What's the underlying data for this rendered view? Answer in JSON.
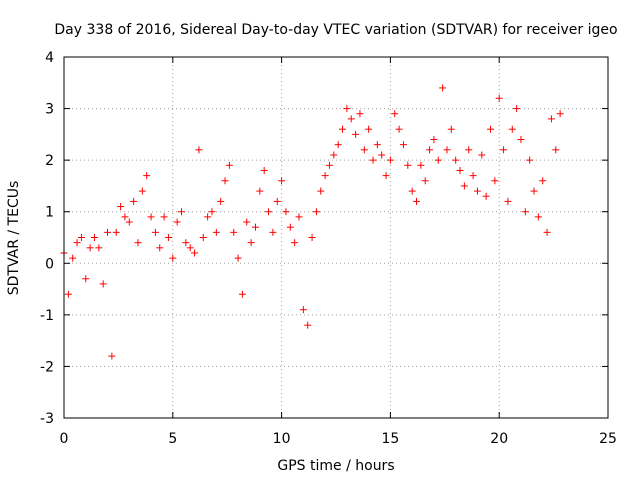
{
  "chart_data": {
    "type": "scatter",
    "title": "Day 338 of 2016, Sidereal Day-to-day VTEC variation (SDTVAR) for receiver igeo",
    "xlabel": "GPS time / hours",
    "ylabel": "SDTVAR / TECUs",
    "xlim": [
      0,
      25
    ],
    "ylim": [
      -3,
      4
    ],
    "xticks": [
      "0",
      "5",
      "10",
      "15",
      "20",
      "25"
    ],
    "yticks": [
      "-3",
      "-2",
      "-1",
      "0",
      "1",
      "2",
      "3",
      "4"
    ],
    "grid": true,
    "marker": "+",
    "color": "#ff0000",
    "series": [
      {
        "name": "SDTVAR",
        "x": [
          0.0,
          0.2,
          0.4,
          0.6,
          0.8,
          1.0,
          1.2,
          1.4,
          1.6,
          1.8,
          2.0,
          2.2,
          2.4,
          2.6,
          2.8,
          3.0,
          3.2,
          3.4,
          3.6,
          3.8,
          4.0,
          4.2,
          4.4,
          4.6,
          4.8,
          5.0,
          5.2,
          5.4,
          5.6,
          5.8,
          6.0,
          6.2,
          6.4,
          6.6,
          6.8,
          7.0,
          7.2,
          7.4,
          7.6,
          7.8,
          8.0,
          8.2,
          8.4,
          8.6,
          8.8,
          9.0,
          9.2,
          9.4,
          9.6,
          9.8,
          10.0,
          10.2,
          10.4,
          10.6,
          10.8,
          11.0,
          11.2,
          11.4,
          11.6,
          11.8,
          12.0,
          12.2,
          12.4,
          12.6,
          12.8,
          13.0,
          13.2,
          13.4,
          13.6,
          13.8,
          14.0,
          14.2,
          14.4,
          14.6,
          14.8,
          15.0,
          15.2,
          15.4,
          15.6,
          15.8,
          16.0,
          16.2,
          16.4,
          16.6,
          16.8,
          17.0,
          17.2,
          17.4,
          17.6,
          17.8,
          18.0,
          18.2,
          18.4,
          18.6,
          18.8,
          19.0,
          19.2,
          19.4,
          19.6,
          19.8,
          20.0,
          20.2,
          20.4,
          20.6,
          20.8,
          21.0,
          21.2,
          21.4,
          21.6,
          21.8,
          22.0,
          22.2,
          22.4,
          22.6,
          22.8
        ],
        "y": [
          0.2,
          -0.6,
          0.1,
          0.4,
          0.5,
          -0.3,
          0.3,
          0.5,
          0.3,
          -0.4,
          0.6,
          -1.8,
          0.6,
          1.1,
          0.9,
          0.8,
          1.2,
          0.4,
          1.4,
          1.7,
          0.9,
          0.6,
          0.3,
          0.9,
          0.5,
          0.1,
          0.8,
          1.0,
          0.4,
          0.3,
          0.2,
          2.2,
          0.5,
          0.9,
          1.0,
          0.6,
          1.2,
          1.6,
          1.9,
          0.6,
          0.1,
          -0.6,
          0.8,
          0.4,
          0.7,
          1.4,
          1.8,
          1.0,
          0.6,
          1.2,
          1.6,
          1.0,
          0.7,
          0.4,
          0.9,
          -0.9,
          -1.2,
          0.5,
          1.0,
          1.4,
          1.7,
          1.9,
          2.1,
          2.3,
          2.6,
          3.0,
          2.8,
          2.5,
          2.9,
          2.2,
          2.6,
          2.0,
          2.3,
          2.1,
          1.7,
          2.0,
          2.9,
          2.6,
          2.3,
          1.9,
          1.4,
          1.2,
          1.9,
          1.6,
          2.2,
          2.4,
          2.0,
          3.4,
          2.2,
          2.6,
          2.0,
          1.8,
          1.5,
          2.2,
          1.7,
          1.4,
          2.1,
          1.3,
          2.6,
          1.6,
          3.2,
          2.2,
          1.2,
          2.6,
          3.0,
          2.4,
          1.0,
          2.0,
          1.4,
          0.9,
          1.6,
          0.6,
          2.8,
          2.2,
          2.9
        ]
      }
    ]
  }
}
